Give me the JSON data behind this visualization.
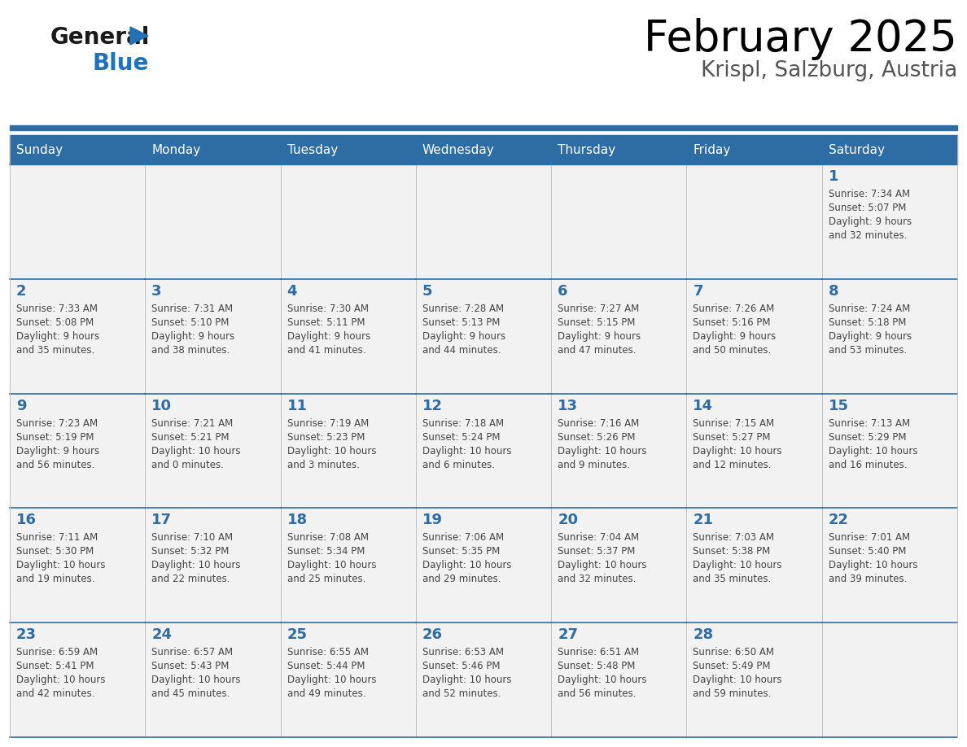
{
  "title": "February 2025",
  "subtitle": "Krispl, Salzburg, Austria",
  "days_of_week": [
    "Sunday",
    "Monday",
    "Tuesday",
    "Wednesday",
    "Thursday",
    "Friday",
    "Saturday"
  ],
  "header_bg": "#2E6DA4",
  "header_text": "#FFFFFF",
  "cell_bg": "#F2F2F2",
  "day_number_color": "#2E6DA4",
  "text_color": "#444444",
  "border_color": "#BBBBBB",
  "row_line_color": "#2E6DA4",
  "logo_general_color": "#1a1a1a",
  "logo_blue_color": "#2272B5",
  "logo_triangle_color": "#2272B5",
  "calendar_data": [
    [
      {
        "day": null,
        "info": ""
      },
      {
        "day": null,
        "info": ""
      },
      {
        "day": null,
        "info": ""
      },
      {
        "day": null,
        "info": ""
      },
      {
        "day": null,
        "info": ""
      },
      {
        "day": null,
        "info": ""
      },
      {
        "day": 1,
        "info": "Sunrise: 7:34 AM\nSunset: 5:07 PM\nDaylight: 9 hours\nand 32 minutes."
      }
    ],
    [
      {
        "day": 2,
        "info": "Sunrise: 7:33 AM\nSunset: 5:08 PM\nDaylight: 9 hours\nand 35 minutes."
      },
      {
        "day": 3,
        "info": "Sunrise: 7:31 AM\nSunset: 5:10 PM\nDaylight: 9 hours\nand 38 minutes."
      },
      {
        "day": 4,
        "info": "Sunrise: 7:30 AM\nSunset: 5:11 PM\nDaylight: 9 hours\nand 41 minutes."
      },
      {
        "day": 5,
        "info": "Sunrise: 7:28 AM\nSunset: 5:13 PM\nDaylight: 9 hours\nand 44 minutes."
      },
      {
        "day": 6,
        "info": "Sunrise: 7:27 AM\nSunset: 5:15 PM\nDaylight: 9 hours\nand 47 minutes."
      },
      {
        "day": 7,
        "info": "Sunrise: 7:26 AM\nSunset: 5:16 PM\nDaylight: 9 hours\nand 50 minutes."
      },
      {
        "day": 8,
        "info": "Sunrise: 7:24 AM\nSunset: 5:18 PM\nDaylight: 9 hours\nand 53 minutes."
      }
    ],
    [
      {
        "day": 9,
        "info": "Sunrise: 7:23 AM\nSunset: 5:19 PM\nDaylight: 9 hours\nand 56 minutes."
      },
      {
        "day": 10,
        "info": "Sunrise: 7:21 AM\nSunset: 5:21 PM\nDaylight: 10 hours\nand 0 minutes."
      },
      {
        "day": 11,
        "info": "Sunrise: 7:19 AM\nSunset: 5:23 PM\nDaylight: 10 hours\nand 3 minutes."
      },
      {
        "day": 12,
        "info": "Sunrise: 7:18 AM\nSunset: 5:24 PM\nDaylight: 10 hours\nand 6 minutes."
      },
      {
        "day": 13,
        "info": "Sunrise: 7:16 AM\nSunset: 5:26 PM\nDaylight: 10 hours\nand 9 minutes."
      },
      {
        "day": 14,
        "info": "Sunrise: 7:15 AM\nSunset: 5:27 PM\nDaylight: 10 hours\nand 12 minutes."
      },
      {
        "day": 15,
        "info": "Sunrise: 7:13 AM\nSunset: 5:29 PM\nDaylight: 10 hours\nand 16 minutes."
      }
    ],
    [
      {
        "day": 16,
        "info": "Sunrise: 7:11 AM\nSunset: 5:30 PM\nDaylight: 10 hours\nand 19 minutes."
      },
      {
        "day": 17,
        "info": "Sunrise: 7:10 AM\nSunset: 5:32 PM\nDaylight: 10 hours\nand 22 minutes."
      },
      {
        "day": 18,
        "info": "Sunrise: 7:08 AM\nSunset: 5:34 PM\nDaylight: 10 hours\nand 25 minutes."
      },
      {
        "day": 19,
        "info": "Sunrise: 7:06 AM\nSunset: 5:35 PM\nDaylight: 10 hours\nand 29 minutes."
      },
      {
        "day": 20,
        "info": "Sunrise: 7:04 AM\nSunset: 5:37 PM\nDaylight: 10 hours\nand 32 minutes."
      },
      {
        "day": 21,
        "info": "Sunrise: 7:03 AM\nSunset: 5:38 PM\nDaylight: 10 hours\nand 35 minutes."
      },
      {
        "day": 22,
        "info": "Sunrise: 7:01 AM\nSunset: 5:40 PM\nDaylight: 10 hours\nand 39 minutes."
      }
    ],
    [
      {
        "day": 23,
        "info": "Sunrise: 6:59 AM\nSunset: 5:41 PM\nDaylight: 10 hours\nand 42 minutes."
      },
      {
        "day": 24,
        "info": "Sunrise: 6:57 AM\nSunset: 5:43 PM\nDaylight: 10 hours\nand 45 minutes."
      },
      {
        "day": 25,
        "info": "Sunrise: 6:55 AM\nSunset: 5:44 PM\nDaylight: 10 hours\nand 49 minutes."
      },
      {
        "day": 26,
        "info": "Sunrise: 6:53 AM\nSunset: 5:46 PM\nDaylight: 10 hours\nand 52 minutes."
      },
      {
        "day": 27,
        "info": "Sunrise: 6:51 AM\nSunset: 5:48 PM\nDaylight: 10 hours\nand 56 minutes."
      },
      {
        "day": 28,
        "info": "Sunrise: 6:50 AM\nSunset: 5:49 PM\nDaylight: 10 hours\nand 59 minutes."
      },
      {
        "day": null,
        "info": ""
      }
    ]
  ]
}
